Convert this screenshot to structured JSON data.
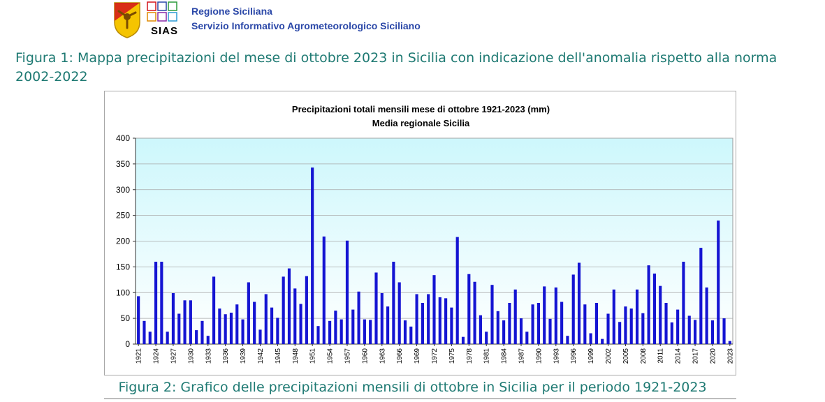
{
  "header": {
    "org_line1": "Regione Siciliana",
    "org_line2": "Servizio Informativo Agrometeorologico Siciliano",
    "sias_logo_text": "SIAS"
  },
  "captions": {
    "figure1": "Figura 1: Mappa precipitazioni del mese di ottobre 2023 in Sicilia con indicazione dell'anomalia rispetto alla norma 2002-2022",
    "figure2": "Figura 2: Grafico delle precipitazioni mensili di ottobre in Sicilia per il periodo 1921-2023"
  },
  "colors": {
    "bar": "#1414d2",
    "plot_top": "#cdf7fc",
    "plot_bottom": "#ffffff",
    "caption": "#1f7a73",
    "org_text": "#2b48a8"
  },
  "chart_data": {
    "type": "bar",
    "title": "Precipitazioni totali mensili mese di ottobre 1921-2023 (mm)",
    "subtitle": "Media regionale Sicilia",
    "xlabel": "",
    "ylabel": "",
    "ylim": [
      0,
      400
    ],
    "yticks": [
      0,
      50,
      100,
      150,
      200,
      250,
      300,
      350,
      400
    ],
    "xtick_labels": [
      "1921",
      "1924",
      "1927",
      "1930",
      "1933",
      "1936",
      "1939",
      "1942",
      "1945",
      "1948",
      "1951",
      "1954",
      "1957",
      "1960",
      "1963",
      "1966",
      "1969",
      "1972",
      "1975",
      "1978",
      "1981",
      "1984",
      "1987",
      "1990",
      "1993",
      "1996",
      "1999",
      "2002",
      "2005",
      "2008",
      "2011",
      "2014",
      "2017",
      "2020",
      "2023"
    ],
    "grid": true,
    "legend": "none",
    "categories": [
      1921,
      1922,
      1923,
      1924,
      1925,
      1926,
      1927,
      1928,
      1929,
      1930,
      1931,
      1932,
      1933,
      1934,
      1935,
      1936,
      1937,
      1938,
      1939,
      1940,
      1941,
      1942,
      1943,
      1944,
      1945,
      1946,
      1947,
      1948,
      1949,
      1950,
      1951,
      1952,
      1953,
      1954,
      1955,
      1956,
      1957,
      1958,
      1959,
      1960,
      1961,
      1962,
      1963,
      1964,
      1965,
      1966,
      1967,
      1968,
      1969,
      1970,
      1971,
      1972,
      1973,
      1974,
      1975,
      1976,
      1977,
      1978,
      1979,
      1980,
      1981,
      1982,
      1983,
      1984,
      1985,
      1986,
      1987,
      1988,
      1989,
      1990,
      1991,
      1992,
      1993,
      1994,
      1995,
      1996,
      1997,
      1998,
      1999,
      2000,
      2001,
      2002,
      2003,
      2004,
      2005,
      2006,
      2007,
      2008,
      2009,
      2010,
      2011,
      2012,
      2013,
      2014,
      2015,
      2016,
      2017,
      2018,
      2019,
      2020,
      2021,
      2022,
      2023
    ],
    "values": [
      93,
      45,
      24,
      160,
      160,
      24,
      99,
      59,
      85,
      85,
      27,
      45,
      16,
      131,
      69,
      58,
      61,
      77,
      48,
      120,
      82,
      28,
      97,
      71,
      51,
      131,
      147,
      108,
      78,
      132,
      343,
      35,
      209,
      45,
      65,
      48,
      201,
      67,
      102,
      48,
      47,
      139,
      99,
      73,
      160,
      120,
      46,
      34,
      97,
      80,
      97,
      134,
      91,
      89,
      71,
      208,
      14,
      136,
      121,
      56,
      24,
      115,
      64,
      46,
      80,
      106,
      50,
      24,
      77,
      80,
      112,
      49,
      110,
      82,
      16,
      135,
      158,
      77,
      21,
      80,
      10,
      59,
      106,
      43,
      73,
      69,
      106,
      60,
      153,
      137,
      113,
      80,
      42,
      67,
      160,
      55,
      47,
      187,
      110,
      46,
      240,
      50,
      6
    ]
  }
}
